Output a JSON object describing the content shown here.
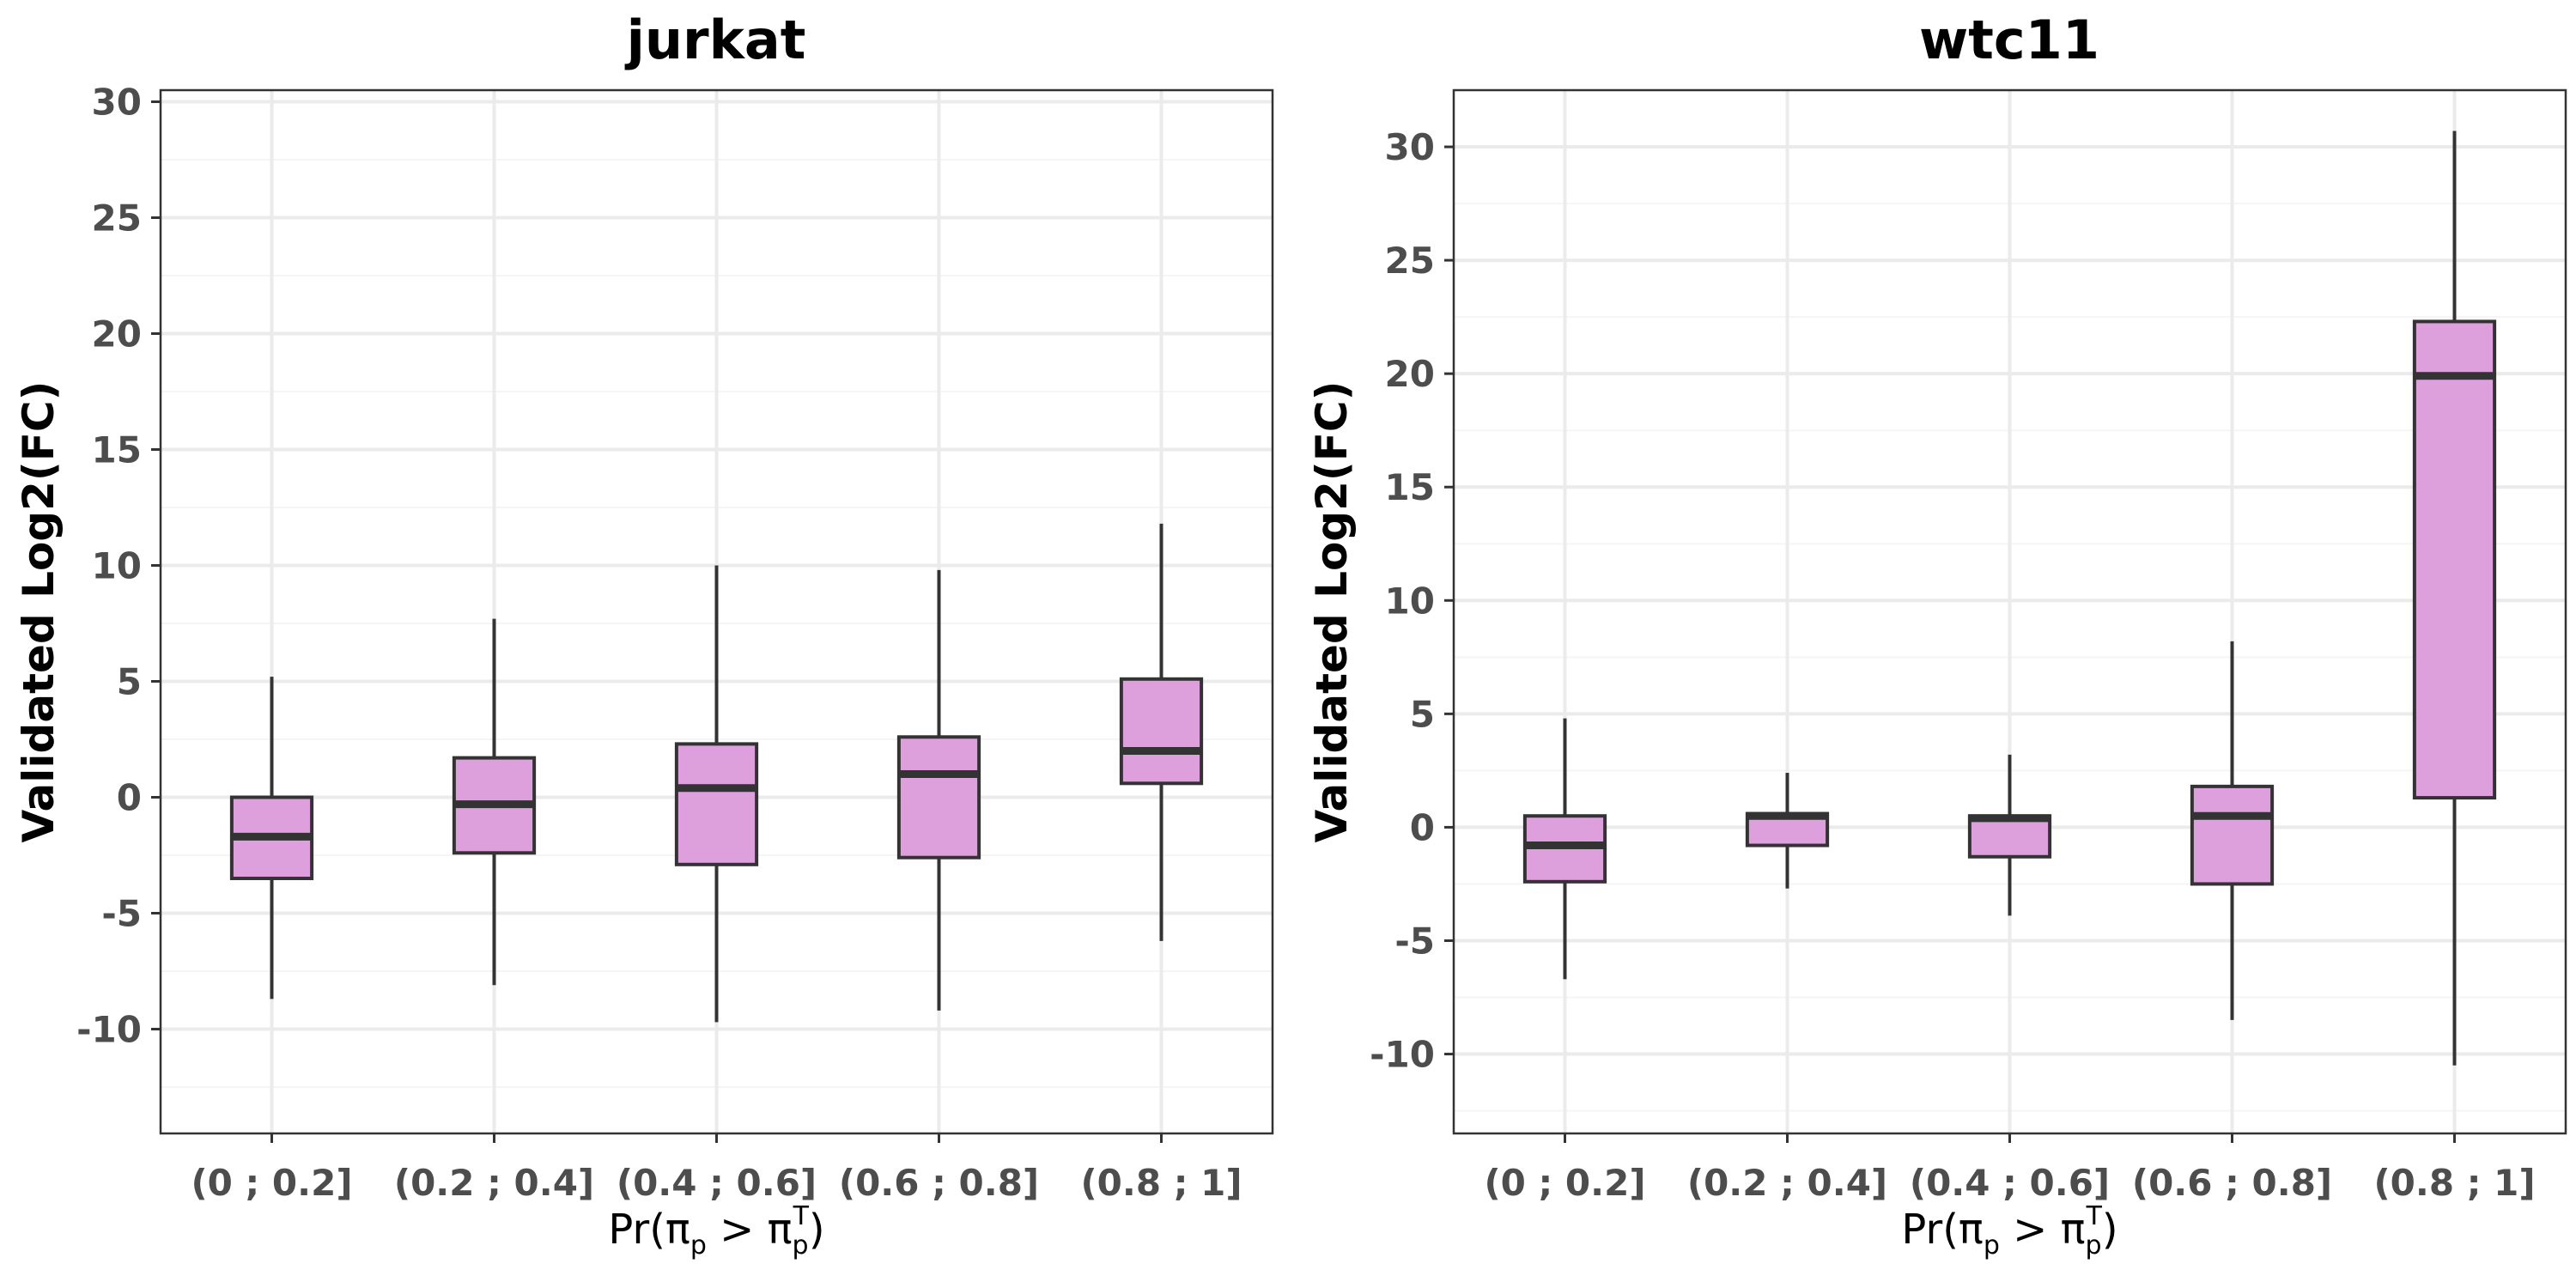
{
  "chart_data": [
    {
      "type": "box",
      "title": "jurkat",
      "xlabel": "Pr(π_p > π_p^T)",
      "ylabel": "Validated Log2(FC)",
      "categories": [
        "(0 ; 0.2]",
        "(0.2 ; 0.4]",
        "(0.4 ; 0.6]",
        "(0.6 ; 0.8]",
        "(0.8 ; 1]"
      ],
      "yticks": [
        -10,
        -5,
        0,
        5,
        10,
        15,
        20,
        25,
        30
      ],
      "ytick_labels": [
        "-10",
        "-5",
        "0",
        "5",
        "10",
        "15",
        "20",
        "25",
        "30"
      ],
      "ylim": [
        -14.5,
        30.5
      ],
      "grid": true,
      "boxes": [
        {
          "min": -8.7,
          "q1": -3.5,
          "median": -1.7,
          "q3": 0.0,
          "max": 5.2
        },
        {
          "min": -8.1,
          "q1": -2.4,
          "median": -0.3,
          "q3": 1.7,
          "max": 7.7
        },
        {
          "min": -9.7,
          "q1": -2.9,
          "median": 0.4,
          "q3": 2.3,
          "max": 10.0
        },
        {
          "min": -9.2,
          "q1": -2.6,
          "median": 1.0,
          "q3": 2.6,
          "max": 9.8
        },
        {
          "min": -6.2,
          "q1": 0.6,
          "median": 2.0,
          "q3": 5.1,
          "max": 11.8
        }
      ]
    },
    {
      "type": "box",
      "title": "wtc11",
      "xlabel": "Pr(π_p > π_p^T)",
      "ylabel": "Validated Log2(FC)",
      "categories": [
        "(0 ; 0.2]",
        "(0.2 ; 0.4]",
        "(0.4 ; 0.6]",
        "(0.6 ; 0.8]",
        "(0.8 ; 1]"
      ],
      "yticks": [
        -10,
        -5,
        0,
        5,
        10,
        15,
        20,
        25,
        30
      ],
      "ytick_labels": [
        "-10",
        "-5",
        "0",
        "5",
        "10",
        "15",
        "20",
        "25",
        "30"
      ],
      "ylim": [
        -13.5,
        32.5
      ],
      "grid": true,
      "boxes": [
        {
          "min": -6.7,
          "q1": -2.4,
          "median": -0.8,
          "q3": 0.5,
          "max": 4.8
        },
        {
          "min": -2.7,
          "q1": -0.8,
          "median": 0.5,
          "q3": 0.6,
          "max": 2.4
        },
        {
          "min": -3.9,
          "q1": -1.3,
          "median": 0.4,
          "q3": 0.5,
          "max": 3.2
        },
        {
          "min": -8.5,
          "q1": -2.5,
          "median": 0.5,
          "q3": 1.8,
          "max": 8.2
        },
        {
          "min": -10.5,
          "q1": 1.3,
          "median": 19.9,
          "q3": 22.3,
          "max": 30.7
        }
      ]
    }
  ],
  "colors": {
    "box_fill": "#dda0dd",
    "box_stroke": "#333333",
    "grid_major": "#ebebeb",
    "grid_minor": "#f5f5f5",
    "panel_border": "#333333"
  }
}
